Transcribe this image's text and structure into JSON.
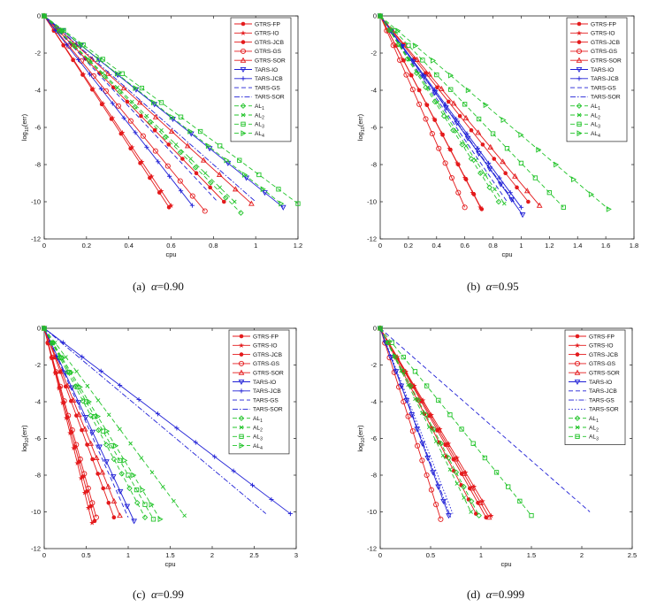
{
  "chart_data": [
    {
      "type": "line",
      "panel_label": "(a)",
      "alpha_symbol": "α",
      "alpha_value": "=0.90",
      "xlabel": "cpu",
      "ylabel": "log10(err)",
      "xlim": [
        0,
        1.2
      ],
      "ylim": [
        -12,
        0
      ],
      "xticks": [
        "0",
        "0.2",
        "0.4",
        "0.6",
        "0.8",
        "1",
        "1.2"
      ],
      "yticks": [
        "0",
        "-2",
        "-4",
        "-6",
        "-8",
        "-10",
        "-12"
      ],
      "legend_position": "top-right",
      "series": [
        {
          "name": "GTRS-FP",
          "color": "#e41a1c",
          "dash": "solid",
          "marker": "dot",
          "x": [
            0,
            0.59
          ],
          "y": [
            0,
            -10.3
          ]
        },
        {
          "name": "GTRS-IO",
          "color": "#e41a1c",
          "dash": "solid",
          "marker": "star",
          "x": [
            0,
            0.6
          ],
          "y": [
            0,
            -10.2
          ]
        },
        {
          "name": "GTRS-JCB",
          "color": "#e41a1c",
          "dash": "solid",
          "marker": "dot",
          "x": [
            0,
            0.85
          ],
          "y": [
            0,
            -10.0
          ]
        },
        {
          "name": "GTRS-GS",
          "color": "#e41a1c",
          "dash": "solid",
          "marker": "circle",
          "x": [
            0,
            0.76
          ],
          "y": [
            0,
            -10.5
          ]
        },
        {
          "name": "GTRS-SOR",
          "color": "#e41a1c",
          "dash": "solid",
          "marker": "triangle-up",
          "x": [
            0,
            0.98
          ],
          "y": [
            0,
            -10.1
          ]
        },
        {
          "name": "TARS-IO",
          "color": "#1f1fd6",
          "dash": "solid",
          "marker": "triangle-down",
          "x": [
            0,
            1.13
          ],
          "y": [
            0,
            -10.3
          ]
        },
        {
          "name": "TARS-JCB",
          "color": "#1f1fd6",
          "dash": "solid",
          "marker": "plus",
          "x": [
            0,
            0.7
          ],
          "y": [
            0,
            -10.2
          ]
        },
        {
          "name": "TARS-GS",
          "color": "#1f1fd6",
          "dash": "dashed",
          "marker": "none",
          "x": [
            0,
            0.82
          ],
          "y": [
            0,
            -10.0
          ]
        },
        {
          "name": "TARS-SOR",
          "color": "#1f1fd6",
          "dash": "dashdot",
          "marker": "none",
          "x": [
            0,
            1.0
          ],
          "y": [
            0,
            -10.0
          ]
        },
        {
          "name": "AL1",
          "color": "#22c42a",
          "dash": "dashed",
          "marker": "diamond",
          "x": [
            0,
            0.93
          ],
          "y": [
            0,
            -10.6
          ]
        },
        {
          "name": "AL2",
          "color": "#22c42a",
          "dash": "dashed",
          "marker": "x",
          "x": [
            0,
            0.9
          ],
          "y": [
            0,
            -10.0
          ]
        },
        {
          "name": "AL3",
          "color": "#22c42a",
          "dash": "dashed",
          "marker": "square",
          "x": [
            0,
            1.2
          ],
          "y": [
            0,
            -10.1
          ]
        },
        {
          "name": "AL4",
          "color": "#22c42a",
          "dash": "dashed",
          "marker": "triangle-right",
          "x": [
            0,
            1.12
          ],
          "y": [
            0,
            -10.1
          ]
        }
      ]
    },
    {
      "type": "line",
      "panel_label": "(b)",
      "alpha_symbol": "α",
      "alpha_value": "=0.95",
      "xlabel": "cpu",
      "ylabel": "log10(err)",
      "xlim": [
        0,
        1.8
      ],
      "ylim": [
        -12,
        0
      ],
      "xticks": [
        "0",
        "0.2",
        "0.4",
        "0.6",
        "0.8",
        "1",
        "1.2",
        "1.4",
        "1.6",
        "1.8"
      ],
      "yticks": [
        "0",
        "-2",
        "-4",
        "-6",
        "-8",
        "-10",
        "-12"
      ],
      "legend_position": "top-right",
      "series": [
        {
          "name": "GTRS-FP",
          "color": "#e41a1c",
          "dash": "solid",
          "marker": "dot",
          "x": [
            0,
            0.72
          ],
          "y": [
            0,
            -10.4
          ]
        },
        {
          "name": "GTRS-IO",
          "color": "#e41a1c",
          "dash": "solid",
          "marker": "star",
          "x": [
            0,
            0.71
          ],
          "y": [
            0,
            -10.3
          ]
        },
        {
          "name": "GTRS-JCB",
          "color": "#e41a1c",
          "dash": "solid",
          "marker": "dot",
          "x": [
            0,
            1.05
          ],
          "y": [
            0,
            -10.0
          ]
        },
        {
          "name": "GTRS-GS",
          "color": "#e41a1c",
          "dash": "solid",
          "marker": "circle",
          "x": [
            0,
            0.6
          ],
          "y": [
            0,
            -10.3
          ]
        },
        {
          "name": "GTRS-SOR",
          "color": "#e41a1c",
          "dash": "solid",
          "marker": "triangle-up",
          "x": [
            0,
            1.13
          ],
          "y": [
            0,
            -10.2
          ]
        },
        {
          "name": "TARS-IO",
          "color": "#1f1fd6",
          "dash": "solid",
          "marker": "triangle-down",
          "x": [
            0,
            1.01
          ],
          "y": [
            0,
            -10.7
          ]
        },
        {
          "name": "TARS-JCB",
          "color": "#1f1fd6",
          "dash": "solid",
          "marker": "plus",
          "x": [
            0,
            1.0
          ],
          "y": [
            0,
            -10.3
          ]
        },
        {
          "name": "TARS-GS",
          "color": "#1f1fd6",
          "dash": "dashed",
          "marker": "none",
          "x": [
            0,
            0.9
          ],
          "y": [
            0,
            -10.0
          ]
        },
        {
          "name": "TARS-SOR",
          "color": "#1f1fd6",
          "dash": "dashdot",
          "marker": "none",
          "x": [
            0,
            0.95
          ],
          "y": [
            0,
            -10.0
          ]
        },
        {
          "name": "AL1",
          "color": "#22c42a",
          "dash": "dashed",
          "marker": "diamond",
          "x": [
            0,
            0.84
          ],
          "y": [
            0,
            -10.0
          ]
        },
        {
          "name": "AL2",
          "color": "#22c42a",
          "dash": "dashed",
          "marker": "x",
          "x": [
            0,
            0.88
          ],
          "y": [
            0,
            -10.1
          ]
        },
        {
          "name": "AL3",
          "color": "#22c42a",
          "dash": "dashed",
          "marker": "square",
          "x": [
            0,
            1.3
          ],
          "y": [
            0,
            -10.3
          ]
        },
        {
          "name": "AL4",
          "color": "#22c42a",
          "dash": "dashed",
          "marker": "triangle-right",
          "x": [
            0,
            1.62
          ],
          "y": [
            0,
            -10.4
          ]
        }
      ]
    },
    {
      "type": "line",
      "panel_label": "(c)",
      "alpha_symbol": "α",
      "alpha_value": "=0.99",
      "xlabel": "cpu",
      "ylabel": "log10(err)",
      "xlim": [
        0,
        3
      ],
      "ylim": [
        -12,
        0
      ],
      "xticks": [
        "0",
        "0.5",
        "1",
        "1.5",
        "2",
        "2.5",
        "3"
      ],
      "yticks": [
        "0",
        "-2",
        "-4",
        "-6",
        "-8",
        "-10",
        "-12"
      ],
      "legend_position": "top-right",
      "series": [
        {
          "name": "GTRS-FP",
          "color": "#e41a1c",
          "dash": "solid",
          "marker": "dot",
          "x": [
            0,
            0.6
          ],
          "y": [
            0,
            -10.5
          ]
        },
        {
          "name": "GTRS-IO",
          "color": "#e41a1c",
          "dash": "solid",
          "marker": "star",
          "x": [
            0,
            0.57
          ],
          "y": [
            0,
            -10.6
          ]
        },
        {
          "name": "GTRS-JCB",
          "color": "#e41a1c",
          "dash": "solid",
          "marker": "dot",
          "x": [
            0,
            0.83
          ],
          "y": [
            0,
            -10.3
          ]
        },
        {
          "name": "GTRS-GS",
          "color": "#e41a1c",
          "dash": "solid",
          "marker": "circle",
          "x": [
            0,
            0.62
          ],
          "y": [
            0,
            -10.3
          ]
        },
        {
          "name": "GTRS-SOR",
          "color": "#e41a1c",
          "dash": "solid",
          "marker": "triangle-up",
          "x": [
            0,
            0.9
          ],
          "y": [
            0,
            -10.2
          ]
        },
        {
          "name": "TARS-IO",
          "color": "#1f1fd6",
          "dash": "solid",
          "marker": "triangle-down",
          "x": [
            0,
            1.07
          ],
          "y": [
            0,
            -10.5
          ]
        },
        {
          "name": "TARS-JCB",
          "color": "#1f1fd6",
          "dash": "solid",
          "marker": "plus",
          "x": [
            0,
            2.93
          ],
          "y": [
            0,
            -10.1
          ]
        },
        {
          "name": "TARS-GS",
          "color": "#1f1fd6",
          "dash": "dashed",
          "marker": "none",
          "x": [
            0,
            1.0
          ],
          "y": [
            0,
            -10.3
          ]
        },
        {
          "name": "TARS-SOR",
          "color": "#1f1fd6",
          "dash": "dashdot",
          "marker": "none",
          "x": [
            0,
            2.64
          ],
          "y": [
            0,
            -10.1
          ]
        },
        {
          "name": "AL1",
          "color": "#22c42a",
          "dash": "dashed",
          "marker": "diamond",
          "x": [
            0,
            1.2
          ],
          "y": [
            0,
            -10.3
          ]
        },
        {
          "name": "AL2",
          "color": "#22c42a",
          "dash": "dashed",
          "marker": "x",
          "x": [
            0,
            1.67
          ],
          "y": [
            0,
            -10.2
          ]
        },
        {
          "name": "AL3",
          "color": "#22c42a",
          "dash": "dashed",
          "marker": "square",
          "x": [
            0,
            1.3
          ],
          "y": [
            0,
            -10.4
          ]
        },
        {
          "name": "AL4",
          "color": "#22c42a",
          "dash": "dashed",
          "marker": "triangle-right",
          "x": [
            0,
            1.38
          ],
          "y": [
            0,
            -10.4
          ]
        }
      ]
    },
    {
      "type": "line",
      "panel_label": "(d)",
      "alpha_symbol": "α",
      "alpha_value": "=0.999",
      "xlabel": "cpu",
      "ylabel": "log10(err)",
      "xlim": [
        0,
        2.5
      ],
      "ylim": [
        -12,
        0
      ],
      "xticks": [
        "0",
        "0.5",
        "1",
        "1.5",
        "2",
        "2.5"
      ],
      "yticks": [
        "0",
        "-2",
        "-4",
        "-6",
        "-8",
        "-10",
        "-12"
      ],
      "legend_position": "top-right",
      "series": [
        {
          "name": "GTRS-FP",
          "color": "#e41a1c",
          "dash": "solid",
          "marker": "dot",
          "x": [
            0,
            1.05
          ],
          "y": [
            0,
            -10.3
          ]
        },
        {
          "name": "GTRS-IO",
          "color": "#e41a1c",
          "dash": "solid",
          "marker": "star",
          "x": [
            0,
            1.1
          ],
          "y": [
            0,
            -10.2
          ]
        },
        {
          "name": "GTRS-JCB",
          "color": "#e41a1c",
          "dash": "solid",
          "marker": "dot",
          "x": [
            0,
            0.95
          ],
          "y": [
            0,
            -10.1
          ]
        },
        {
          "name": "GTRS-GS",
          "color": "#e41a1c",
          "dash": "solid",
          "marker": "circle",
          "x": [
            0,
            0.6
          ],
          "y": [
            0,
            -10.4
          ]
        },
        {
          "name": "GTRS-SOR",
          "color": "#e41a1c",
          "dash": "solid",
          "marker": "triangle-up",
          "x": [
            0,
            1.08
          ],
          "y": [
            0,
            -10.3
          ]
        },
        {
          "name": "TARS-IO",
          "color": "#1f1fd6",
          "dash": "solid",
          "marker": "triangle-down",
          "x": [
            0,
            0.68
          ],
          "y": [
            0,
            -10.2
          ]
        },
        {
          "name": "TARS-JCB",
          "color": "#1f1fd6",
          "dash": "dashed",
          "marker": "none",
          "x": [
            0,
            2.08
          ],
          "y": [
            0,
            -10.0
          ]
        },
        {
          "name": "TARS-GS",
          "color": "#1f1fd6",
          "dash": "dashdot",
          "marker": "none",
          "x": [
            0,
            0.7
          ],
          "y": [
            0,
            -10.3
          ]
        },
        {
          "name": "TARS-SOR",
          "color": "#1f1fd6",
          "dash": "dotted",
          "marker": "none",
          "x": [
            0,
            0.72
          ],
          "y": [
            0,
            -10.1
          ]
        },
        {
          "name": "AL1",
          "color": "#22c42a",
          "dash": "dashed",
          "marker": "diamond",
          "x": [
            0,
            0.98
          ],
          "y": [
            0,
            -10.2
          ]
        },
        {
          "name": "AL2",
          "color": "#22c42a",
          "dash": "dashed",
          "marker": "x",
          "x": [
            0,
            0.9
          ],
          "y": [
            0,
            -10.0
          ]
        },
        {
          "name": "AL3",
          "color": "#22c42a",
          "dash": "dashed",
          "marker": "square",
          "x": [
            0,
            1.5
          ],
          "y": [
            0,
            -10.2
          ]
        }
      ]
    }
  ]
}
